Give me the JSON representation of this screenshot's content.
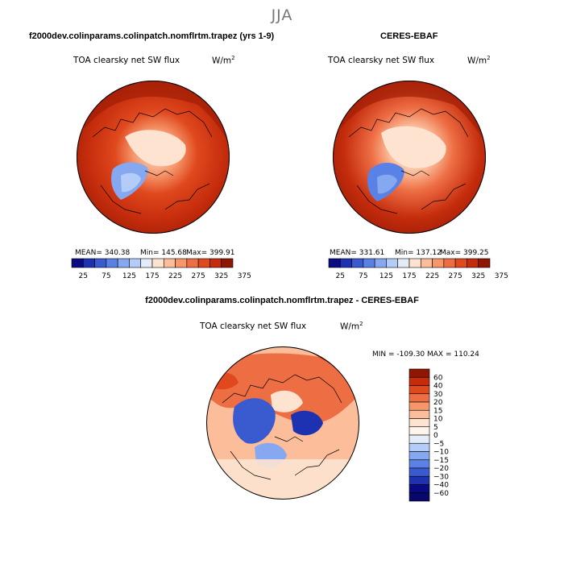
{
  "season": "JJA",
  "panels": {
    "model": {
      "title": "f2000dev.colinparams.colinpatch.nomflrtm.trapez (yrs 1-9)",
      "variable": "TOA clearsky net SW flux",
      "units": "W/m",
      "units_sup": "2",
      "mean_text": "MEAN= 340.38",
      "min_text": "Min= 145.68",
      "max_text": "Max= 399.91"
    },
    "obs": {
      "title": "CERES-EBAF",
      "variable": "TOA clearsky net SW flux",
      "units": "W/m",
      "units_sup": "2",
      "mean_text": "MEAN= 331.61",
      "min_text": "Min= 137.12",
      "max_text": "Max= 399.25"
    },
    "diff": {
      "title": "f2000dev.colinparams.colinpatch.nomflrtm.trapez - CERES-EBAF",
      "variable": "TOA clearsky net SW flux",
      "units": "W/m",
      "units_sup": "2",
      "minmax_text": "MIN = -109.30  MAX = 110.24"
    }
  },
  "colorbars": {
    "abs": {
      "tick_labels": [
        "25",
        "75",
        "125",
        "175",
        "225",
        "275",
        "325",
        "375"
      ],
      "colors": [
        "#0a0a82",
        "#1c32b0",
        "#3a5ad0",
        "#5a82e6",
        "#86a8f0",
        "#b4cdf8",
        "#e4ecf8",
        "#fde3d0",
        "#fbbd9a",
        "#f6966a",
        "#ee6e44",
        "#e0481e",
        "#c42c0c",
        "#901604"
      ]
    },
    "diff": {
      "tick_labels": [
        "60",
        "40",
        "30",
        "20",
        "15",
        "10",
        "5",
        "0",
        "−5",
        "−10",
        "−15",
        "−20",
        "−30",
        "−40",
        "−60"
      ],
      "colors": [
        "#901604",
        "#c42c0c",
        "#e0481e",
        "#ee6e44",
        "#f6966a",
        "#fbbd9a",
        "#fde3d0",
        "#fdf4ec",
        "#e4ecf8",
        "#b4cdf8",
        "#86a8f0",
        "#5a82e6",
        "#3a5ad0",
        "#1c32b0",
        "#0a0a82",
        "#08086a"
      ]
    }
  },
  "chart_data": [
    {
      "type": "heatmap",
      "title": "f2000dev.colinparams.colinpatch.nomflrtm.trapez (yrs 1-9)",
      "variable": "TOA clearsky net SW flux",
      "units": "W/m2",
      "projection": "north polar stereographic",
      "mean": 340.38,
      "min": 145.68,
      "max": 399.91,
      "levels": [
        25,
        50,
        75,
        100,
        125,
        150,
        175,
        200,
        225,
        250,
        275,
        300,
        325,
        350,
        375
      ]
    },
    {
      "type": "heatmap",
      "title": "CERES-EBAF",
      "variable": "TOA clearsky net SW flux",
      "units": "W/m2",
      "projection": "north polar stereographic",
      "mean": 331.61,
      "min": 137.12,
      "max": 399.25,
      "levels": [
        25,
        50,
        75,
        100,
        125,
        150,
        175,
        200,
        225,
        250,
        275,
        300,
        325,
        350,
        375
      ]
    },
    {
      "type": "heatmap",
      "title": "f2000dev.colinparams.colinpatch.nomflrtm.trapez - CERES-EBAF",
      "variable": "TOA clearsky net SW flux",
      "units": "W/m2",
      "projection": "north polar stereographic",
      "min": -109.3,
      "max": 110.24,
      "levels": [
        -60,
        -40,
        -30,
        -20,
        -15,
        -10,
        -5,
        0,
        5,
        10,
        15,
        20,
        30,
        40,
        60
      ]
    }
  ]
}
